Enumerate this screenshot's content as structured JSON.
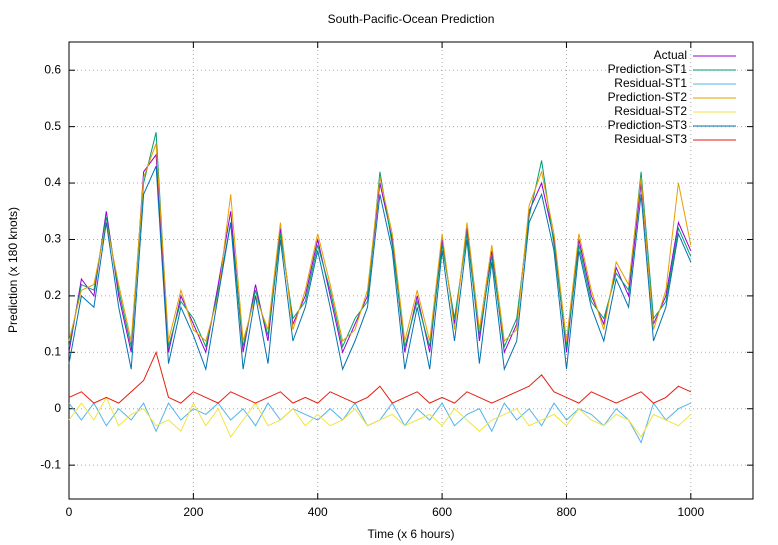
{
  "chart_data": {
    "type": "line",
    "title": "South-Pacific-Ocean Prediction",
    "x_label": "Time (x 6 hours)",
    "y_label": "Prediction (x 180 knots)",
    "xlim": [
      0,
      1100
    ],
    "xticks": [
      0,
      200,
      400,
      600,
      800,
      1000
    ],
    "ylim": [
      -0.16,
      0.65
    ],
    "yticks": [
      -0.1,
      0,
      0.1,
      0.2,
      0.3,
      0.4,
      0.5,
      0.6
    ],
    "grid": true,
    "legend": "top-right",
    "x": [
      0,
      20,
      40,
      60,
      80,
      100,
      120,
      140,
      160,
      180,
      200,
      220,
      240,
      260,
      280,
      300,
      320,
      340,
      360,
      380,
      400,
      420,
      440,
      460,
      480,
      500,
      520,
      540,
      560,
      580,
      600,
      620,
      640,
      660,
      680,
      700,
      720,
      740,
      760,
      780,
      800,
      820,
      840,
      860,
      880,
      900,
      920,
      940,
      960,
      980,
      1000
    ],
    "series": [
      {
        "name": "Actual",
        "color": "#9400d3",
        "values": [
          0.1,
          0.23,
          0.2,
          0.35,
          0.2,
          0.1,
          0.42,
          0.45,
          0.1,
          0.2,
          0.15,
          0.1,
          0.22,
          0.35,
          0.1,
          0.22,
          0.12,
          0.32,
          0.15,
          0.2,
          0.3,
          0.2,
          0.1,
          0.15,
          0.2,
          0.4,
          0.3,
          0.1,
          0.2,
          0.1,
          0.3,
          0.15,
          0.32,
          0.12,
          0.28,
          0.1,
          0.15,
          0.35,
          0.4,
          0.3,
          0.1,
          0.3,
          0.2,
          0.15,
          0.25,
          0.2,
          0.4,
          0.15,
          0.2,
          0.33,
          0.28
        ]
      },
      {
        "name": "Prediction-ST1",
        "color": "#009e73",
        "values": [
          0.11,
          0.22,
          0.21,
          0.34,
          0.21,
          0.11,
          0.4,
          0.49,
          0.11,
          0.19,
          0.16,
          0.11,
          0.21,
          0.33,
          0.11,
          0.21,
          0.13,
          0.31,
          0.16,
          0.19,
          0.29,
          0.21,
          0.11,
          0.16,
          0.19,
          0.42,
          0.29,
          0.11,
          0.19,
          0.11,
          0.29,
          0.16,
          0.31,
          0.13,
          0.27,
          0.11,
          0.16,
          0.34,
          0.44,
          0.29,
          0.11,
          0.29,
          0.19,
          0.16,
          0.24,
          0.21,
          0.42,
          0.16,
          0.19,
          0.32,
          0.27
        ]
      },
      {
        "name": "Residual-ST1",
        "color": "#56b4e9",
        "values": [
          0.01,
          -0.02,
          0.01,
          -0.03,
          0.0,
          -0.02,
          0.01,
          -0.04,
          0.01,
          -0.02,
          0.0,
          -0.01,
          0.01,
          -0.02,
          0.0,
          -0.03,
          0.01,
          -0.02,
          0.0,
          -0.01,
          -0.02,
          0.0,
          -0.02,
          0.01,
          -0.03,
          -0.02,
          0.01,
          -0.03,
          0.0,
          -0.02,
          0.01,
          -0.03,
          -0.01,
          0.0,
          -0.04,
          0.01,
          -0.02,
          0.0,
          -0.03,
          0.01,
          -0.02,
          0.0,
          -0.01,
          -0.03,
          0.0,
          -0.02,
          -0.06,
          0.01,
          -0.02,
          0.0,
          0.01
        ]
      },
      {
        "name": "Prediction-ST2",
        "color": "#e69f00",
        "values": [
          0.12,
          0.21,
          0.22,
          0.33,
          0.22,
          0.12,
          0.41,
          0.47,
          0.12,
          0.21,
          0.14,
          0.12,
          0.2,
          0.38,
          0.12,
          0.2,
          0.14,
          0.33,
          0.14,
          0.21,
          0.31,
          0.22,
          0.12,
          0.14,
          0.21,
          0.41,
          0.31,
          0.12,
          0.21,
          0.12,
          0.31,
          0.14,
          0.33,
          0.14,
          0.29,
          0.12,
          0.14,
          0.36,
          0.42,
          0.31,
          0.12,
          0.31,
          0.21,
          0.14,
          0.26,
          0.22,
          0.41,
          0.14,
          0.21,
          0.4,
          0.29
        ]
      },
      {
        "name": "Residual-ST2",
        "color": "#f0e442",
        "values": [
          -0.02,
          0.01,
          -0.02,
          0.02,
          -0.03,
          -0.01,
          0.0,
          -0.03,
          -0.02,
          -0.04,
          0.01,
          -0.03,
          0.0,
          -0.05,
          -0.02,
          0.01,
          -0.03,
          -0.02,
          0.0,
          -0.03,
          -0.01,
          -0.03,
          -0.02,
          0.0,
          -0.03,
          -0.02,
          -0.01,
          -0.03,
          -0.02,
          -0.01,
          -0.03,
          0.0,
          -0.02,
          -0.04,
          -0.02,
          -0.01,
          0.0,
          -0.03,
          -0.02,
          -0.01,
          -0.03,
          0.0,
          -0.02,
          -0.03,
          -0.01,
          -0.02,
          -0.05,
          -0.01,
          -0.02,
          -0.03,
          -0.01
        ]
      },
      {
        "name": "Prediction-ST3",
        "color": "#0072b2",
        "values": [
          0.08,
          0.2,
          0.18,
          0.33,
          0.18,
          0.07,
          0.38,
          0.43,
          0.08,
          0.18,
          0.13,
          0.07,
          0.2,
          0.33,
          0.07,
          0.2,
          0.08,
          0.3,
          0.12,
          0.18,
          0.28,
          0.18,
          0.07,
          0.12,
          0.18,
          0.38,
          0.28,
          0.07,
          0.18,
          0.07,
          0.28,
          0.12,
          0.3,
          0.08,
          0.26,
          0.07,
          0.12,
          0.33,
          0.38,
          0.28,
          0.07,
          0.28,
          0.18,
          0.12,
          0.23,
          0.18,
          0.38,
          0.12,
          0.18,
          0.31,
          0.26
        ]
      },
      {
        "name": "Residual-ST3",
        "color": "#e51e10",
        "values": [
          0.02,
          0.03,
          0.01,
          0.02,
          0.01,
          0.03,
          0.05,
          0.1,
          0.02,
          0.01,
          0.03,
          0.02,
          0.01,
          0.03,
          0.02,
          0.01,
          0.02,
          0.03,
          0.01,
          0.02,
          0.01,
          0.03,
          0.02,
          0.01,
          0.02,
          0.04,
          0.01,
          0.02,
          0.03,
          0.01,
          0.02,
          0.01,
          0.03,
          0.02,
          0.01,
          0.02,
          0.03,
          0.04,
          0.06,
          0.03,
          0.02,
          0.01,
          0.03,
          0.02,
          0.01,
          0.02,
          0.03,
          0.01,
          0.02,
          0.04,
          0.03
        ]
      }
    ]
  }
}
